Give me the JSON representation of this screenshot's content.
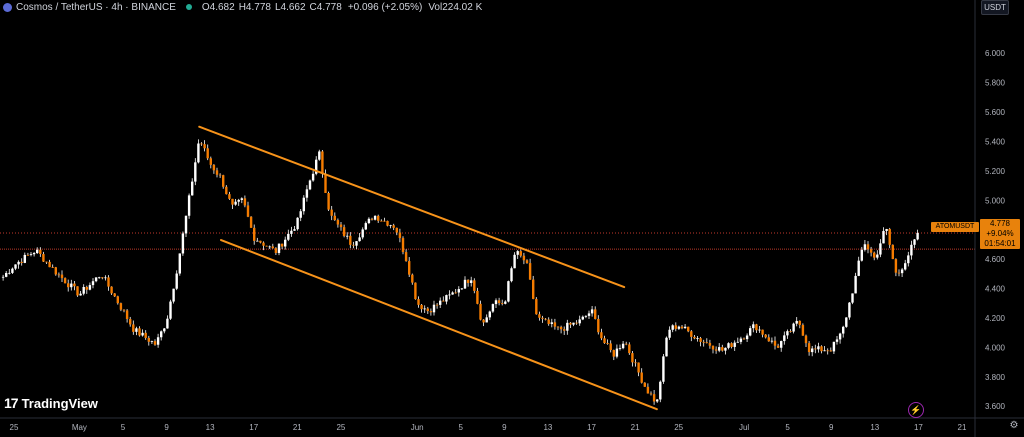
{
  "header": {
    "title": "Cosmos / TetherUS · 4h · BINANCE",
    "ohlc": [
      {
        "k": "O",
        "v": "4.682"
      },
      {
        "k": "H",
        "v": "4.778"
      },
      {
        "k": "L",
        "v": "4.662"
      },
      {
        "k": "C",
        "v": "4.778"
      }
    ],
    "change": "+0.096 (+2.05%)",
    "volume_label": "Vol",
    "volume": "224.02 K"
  },
  "currency": "USDT",
  "price_tag": {
    "symbol": "ATOMUSDT",
    "price": "4.778",
    "change_pct": "+9.04%",
    "countdown": "01:54:01"
  },
  "logo_text": "TradingView",
  "colors": {
    "background": "#000000",
    "candle": "#f57c00",
    "wick": "#ffffff",
    "channel": "#f7931a",
    "grid": "#1a1d26",
    "axis_text": "#b2b5be",
    "last_price": "#e8820c",
    "dotted_line": "#c0392b"
  },
  "chart_data": {
    "type": "candlestick",
    "title": "",
    "xlabel": "",
    "ylabel": "",
    "ylim": [
      3.52,
      6.28
    ],
    "y_ticks": [
      "6.000",
      "5.800",
      "5.600",
      "5.400",
      "5.200",
      "5.000",
      "4.800",
      "4.600",
      "4.400",
      "4.200",
      "4.000",
      "3.800",
      "3.600"
    ],
    "x_ticks": [
      "25",
      "May",
      "5",
      "9",
      "13",
      "17",
      "21",
      "25",
      "Jun",
      "5",
      "9",
      "13",
      "17",
      "21",
      "25",
      "Jul",
      "5",
      "9",
      "13",
      "17",
      "21"
    ],
    "x_range": {
      "start": "2024-04-25",
      "end": "2024-07-21"
    },
    "grid": false,
    "last_price": 4.778,
    "dotted_levels": [
      4.778,
      4.668
    ],
    "path_points": [
      {
        "x": "2024-04-24",
        "y": 4.48
      },
      {
        "x": "2024-04-25",
        "y": 4.56
      },
      {
        "x": "2024-04-27",
        "y": 4.66
      },
      {
        "x": "2024-04-29",
        "y": 4.5
      },
      {
        "x": "2024-05-01",
        "y": 4.36
      },
      {
        "x": "2024-05-03",
        "y": 4.5
      },
      {
        "x": "2024-05-05",
        "y": 4.25
      },
      {
        "x": "2024-05-06",
        "y": 4.12
      },
      {
        "x": "2024-05-08",
        "y": 4.02
      },
      {
        "x": "2024-05-09",
        "y": 4.18
      },
      {
        "x": "2024-05-10",
        "y": 4.55
      },
      {
        "x": "2024-05-11",
        "y": 4.98
      },
      {
        "x": "2024-05-12",
        "y": 5.42
      },
      {
        "x": "2024-05-13",
        "y": 5.25
      },
      {
        "x": "2024-05-14",
        "y": 5.15
      },
      {
        "x": "2024-05-15",
        "y": 4.95
      },
      {
        "x": "2024-05-16",
        "y": 5.0
      },
      {
        "x": "2024-05-17",
        "y": 4.75
      },
      {
        "x": "2024-05-19",
        "y": 4.65
      },
      {
        "x": "2024-05-21",
        "y": 4.85
      },
      {
        "x": "2024-05-22",
        "y": 5.1
      },
      {
        "x": "2024-05-23",
        "y": 5.32
      },
      {
        "x": "2024-05-24",
        "y": 4.9
      },
      {
        "x": "2024-05-26",
        "y": 4.7
      },
      {
        "x": "2024-05-28",
        "y": 4.9
      },
      {
        "x": "2024-05-30",
        "y": 4.82
      },
      {
        "x": "2024-05-31",
        "y": 4.6
      },
      {
        "x": "2024-06-01",
        "y": 4.3
      },
      {
        "x": "2024-06-02",
        "y": 4.25
      },
      {
        "x": "2024-06-04",
        "y": 4.35
      },
      {
        "x": "2024-06-06",
        "y": 4.48
      },
      {
        "x": "2024-06-07",
        "y": 4.15
      },
      {
        "x": "2024-06-08",
        "y": 4.3
      },
      {
        "x": "2024-06-09",
        "y": 4.3
      },
      {
        "x": "2024-06-10",
        "y": 4.65
      },
      {
        "x": "2024-06-11",
        "y": 4.58
      },
      {
        "x": "2024-06-12",
        "y": 4.2
      },
      {
        "x": "2024-06-14",
        "y": 4.12
      },
      {
        "x": "2024-06-16",
        "y": 4.18
      },
      {
        "x": "2024-06-17",
        "y": 4.25
      },
      {
        "x": "2024-06-18",
        "y": 4.05
      },
      {
        "x": "2024-06-19",
        "y": 3.95
      },
      {
        "x": "2024-06-20",
        "y": 4.05
      },
      {
        "x": "2024-06-21",
        "y": 3.88
      },
      {
        "x": "2024-06-22",
        "y": 3.72
      },
      {
        "x": "2024-06-23",
        "y": 3.62
      },
      {
        "x": "2024-06-24",
        "y": 4.12
      },
      {
        "x": "2024-06-25",
        "y": 4.15
      },
      {
        "x": "2024-06-27",
        "y": 4.05
      },
      {
        "x": "2024-06-29",
        "y": 3.98
      },
      {
        "x": "2024-07-01",
        "y": 4.08
      },
      {
        "x": "2024-07-02",
        "y": 4.15
      },
      {
        "x": "2024-07-04",
        "y": 4.0
      },
      {
        "x": "2024-07-06",
        "y": 4.18
      },
      {
        "x": "2024-07-07",
        "y": 3.98
      },
      {
        "x": "2024-07-09",
        "y": 3.99
      },
      {
        "x": "2024-07-10",
        "y": 4.1
      },
      {
        "x": "2024-07-11",
        "y": 4.4
      },
      {
        "x": "2024-07-12",
        "y": 4.72
      },
      {
        "x": "2024-07-13",
        "y": 4.6
      },
      {
        "x": "2024-07-14",
        "y": 4.82
      },
      {
        "x": "2024-07-15",
        "y": 4.48
      },
      {
        "x": "2024-07-16",
        "y": 4.62
      },
      {
        "x": "2024-07-17",
        "y": 4.778
      }
    ],
    "channel_lines": [
      {
        "from": {
          "x": "2024-05-12",
          "y": 5.5
        },
        "to": {
          "x": "2024-06-20",
          "y": 4.41
        }
      },
      {
        "from": {
          "x": "2024-05-14",
          "y": 4.73
        },
        "to": {
          "x": "2024-06-23",
          "y": 3.58
        }
      }
    ]
  }
}
